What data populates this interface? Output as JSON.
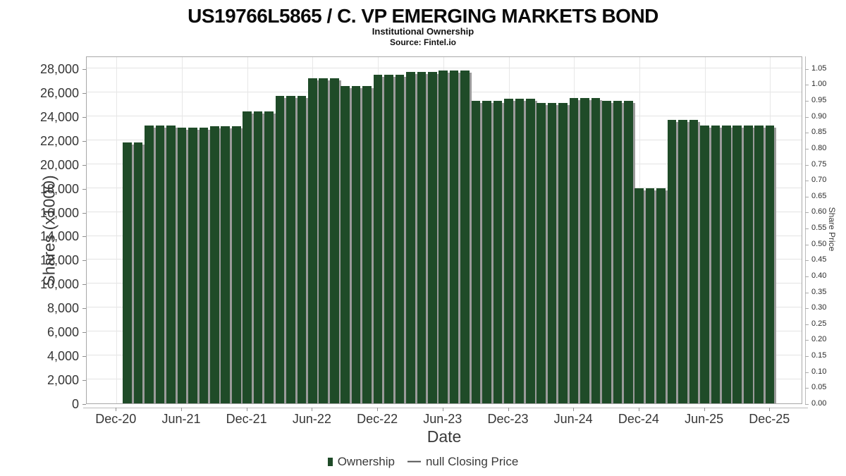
{
  "header": {
    "title": "US19766L5865 / C. VP EMERGING MARKETS BOND",
    "subtitle": "Institutional Ownership",
    "source": "Source: Fintel.io"
  },
  "legend": {
    "ownership_label": "Ownership",
    "price_dash": "—",
    "price_label": "null Closing Price"
  },
  "chart_data": {
    "type": "bar",
    "title": "US19766L5865 / C. VP EMERGING MARKETS BOND",
    "subtitle": "Institutional Ownership",
    "source": "Source: Fintel.io",
    "xlabel": "Date",
    "ylabel_left": "Shares (x1000)",
    "ylabel_right": "Share Price",
    "grid": true,
    "legend_position": "bottom",
    "bar_color": "#1F4B28",
    "bar_shadow_color": "#9b9b9b",
    "y_left_axis": {
      "min": 0,
      "max": 28000,
      "step": 2000
    },
    "y_right_axis": {
      "min": 0.0,
      "max": 1.05,
      "step": 0.05
    },
    "x_tick_labels": [
      "Dec-20",
      "Jun-21",
      "Dec-21",
      "Jun-22",
      "Dec-22",
      "Jun-23",
      "Dec-23",
      "Jun-24",
      "Dec-24",
      "Jun-25",
      "Dec-25"
    ],
    "x": [
      "Jan-21",
      "Feb-21",
      "Mar-21",
      "Apr-21",
      "May-21",
      "Jun-21",
      "Jul-21",
      "Aug-21",
      "Sep-21",
      "Oct-21",
      "Nov-21",
      "Dec-21",
      "Jan-22",
      "Feb-22",
      "Mar-22",
      "Apr-22",
      "May-22",
      "Jun-22",
      "Jul-22",
      "Aug-22",
      "Sep-22",
      "Oct-22",
      "Nov-22",
      "Dec-22",
      "Jan-23",
      "Feb-23",
      "Mar-23",
      "Apr-23",
      "May-23",
      "Jun-23",
      "Jul-23",
      "Aug-23",
      "Sep-23",
      "Oct-23",
      "Nov-23",
      "Dec-23",
      "Jan-24",
      "Feb-24",
      "Mar-24",
      "Apr-24",
      "May-24",
      "Jun-24",
      "Jul-24",
      "Aug-24",
      "Sep-24",
      "Oct-24",
      "Nov-24",
      "Dec-24",
      "Jan-25",
      "Feb-25",
      "Mar-25",
      "Apr-25",
      "May-25",
      "Jun-25",
      "Jul-25",
      "Aug-25",
      "Sep-25",
      "Oct-25",
      "Nov-25",
      "Dec-25"
    ],
    "series": [
      {
        "name": "Ownership",
        "type": "bar",
        "units": "shares_x1000",
        "values": [
          21800,
          21800,
          23200,
          23200,
          23200,
          23050,
          23050,
          23050,
          23150,
          23150,
          23150,
          24400,
          24400,
          24400,
          25700,
          25700,
          25700,
          27200,
          27200,
          27200,
          26550,
          26550,
          26550,
          27450,
          27450,
          27450,
          27700,
          27700,
          27700,
          27800,
          27800,
          27800,
          25300,
          25300,
          25300,
          25450,
          25450,
          25450,
          25100,
          25100,
          25100,
          25550,
          25550,
          25550,
          25300,
          25300,
          25300,
          17950,
          17950,
          17950,
          23700,
          23700,
          23700,
          23250,
          23250,
          23250,
          23250,
          23250,
          23250,
          23250
        ]
      },
      {
        "name": "null Closing Price",
        "type": "line",
        "values": null
      }
    ]
  }
}
